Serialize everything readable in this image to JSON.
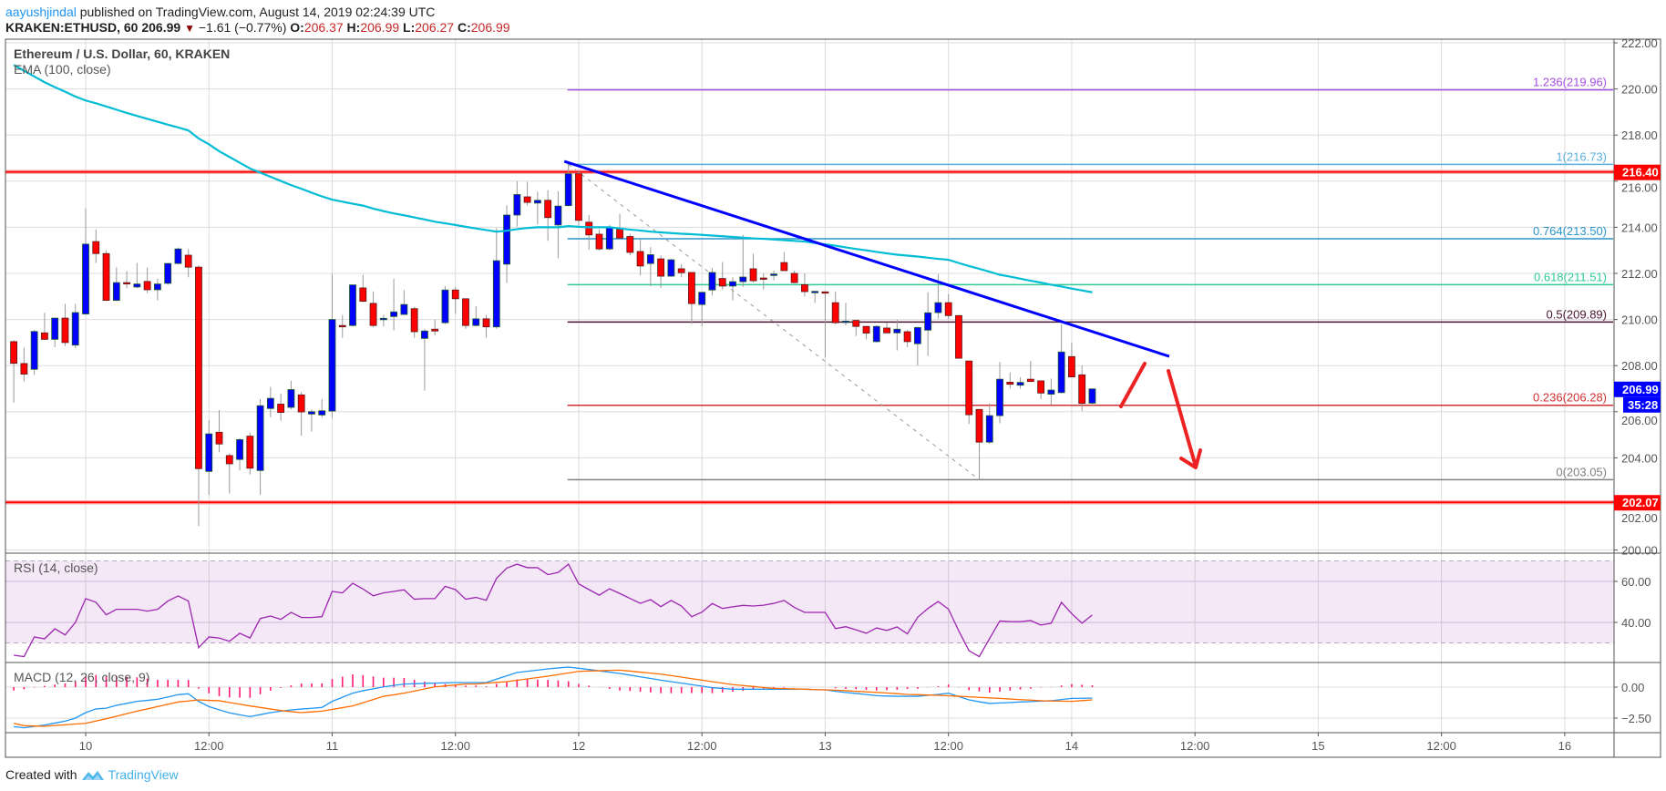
{
  "header": {
    "author": "aayushjindal",
    "published": "published on TradingView.com, August 14, 2019 02:24:39 UTC",
    "symbol": "KRAKEN:ETHUSD, 60",
    "last": "206.99",
    "change": "−1.61 (−0.77%)",
    "o_label": "O:",
    "o": "206.37",
    "h_label": "H:",
    "h": "206.99",
    "l_label": "L:",
    "l": "206.27",
    "c_label": "C:",
    "c": "206.99",
    "down_icon": "triangle-down-icon"
  },
  "footer": {
    "created": "Created with",
    "brand": "TradingView",
    "logo_icon": "tradingview-logo-icon"
  },
  "colors": {
    "up": "#0000ff",
    "down": "#ff0000",
    "ema": "#00bcd4",
    "rsi": "#9c27b0",
    "macd": "#2196f3",
    "signal": "#ff6d00",
    "hist": "#ff1a75",
    "trendline": "#0000ff",
    "level": "#ff0000",
    "last_price": "#0000ff"
  },
  "chart_data": {
    "type": "candlestick",
    "title": "Ethereum / U.S. Dollar, 60, KRAKEN",
    "indicator_label": "EMA (100, close)",
    "ylim": [
      200,
      222
    ],
    "y_ticks": [
      "222.00",
      "220.00",
      "218.00",
      "216.00",
      "214.00",
      "212.00",
      "210.00",
      "208.00",
      "206.00",
      "204.00",
      "202.00",
      "200.00"
    ],
    "x_tick_labels": [
      "10",
      "12:00",
      "11",
      "12:00",
      "12",
      "12:00",
      "13",
      "12:00",
      "14",
      "12:00",
      "15",
      "12:00",
      "16"
    ],
    "grid": true,
    "ohlc": [
      [
        209.04,
        209.1,
        206.4,
        208.1
      ],
      [
        208.09,
        208.78,
        207.31,
        207.63
      ],
      [
        207.84,
        209.55,
        207.6,
        209.48
      ],
      [
        209.42,
        210.29,
        209.1,
        209.14
      ],
      [
        209.14,
        210.06,
        208.8,
        210.06
      ],
      [
        210.06,
        210.68,
        208.85,
        209.0
      ],
      [
        208.89,
        210.68,
        208.75,
        210.3
      ],
      [
        210.24,
        214.82,
        210.2,
        213.27
      ],
      [
        213.38,
        213.91,
        212.45,
        212.86
      ],
      [
        212.86,
        213.0,
        210.8,
        210.83
      ],
      [
        210.83,
        212.26,
        210.8,
        211.6
      ],
      [
        211.6,
        212.1,
        211.35,
        211.55
      ],
      [
        211.41,
        212.45,
        211.35,
        211.54
      ],
      [
        211.65,
        212.26,
        211.15,
        211.29
      ],
      [
        211.29,
        211.77,
        210.83,
        211.54
      ],
      [
        211.57,
        212.45,
        211.5,
        212.43
      ],
      [
        212.43,
        213.12,
        212.4,
        213.06
      ],
      [
        212.79,
        213.05,
        211.83,
        212.27
      ],
      [
        212.27,
        212.35,
        201.04,
        203.53
      ],
      [
        203.41,
        205.64,
        202.4,
        205.04
      ],
      [
        205.11,
        206.07,
        204.24,
        204.6
      ],
      [
        204.1,
        204.2,
        202.45,
        203.74
      ],
      [
        203.93,
        204.85,
        203.45,
        204.79
      ],
      [
        204.94,
        205.1,
        203.28,
        203.55
      ],
      [
        203.45,
        206.55,
        202.4,
        206.26
      ],
      [
        206.14,
        207.08,
        205.76,
        206.58
      ],
      [
        206.33,
        206.79,
        205.61,
        205.97
      ],
      [
        206.19,
        207.34,
        206.1,
        206.96
      ],
      [
        206.73,
        206.86,
        204.96,
        205.99
      ],
      [
        205.9,
        206.1,
        205.14,
        206.0
      ],
      [
        205.86,
        206.55,
        205.75,
        206.04
      ],
      [
        206.03,
        211.97,
        205.73,
        210.0
      ],
      [
        209.74,
        210.2,
        209.2,
        209.72
      ],
      [
        209.74,
        211.5,
        209.7,
        211.5
      ],
      [
        211.37,
        211.94,
        210.75,
        210.79
      ],
      [
        210.7,
        211.22,
        209.67,
        209.74
      ],
      [
        210.03,
        210.2,
        209.7,
        210.05
      ],
      [
        210.13,
        211.77,
        209.53,
        210.33
      ],
      [
        210.22,
        211.27,
        210.2,
        210.65
      ],
      [
        210.47,
        210.55,
        209.21,
        209.47
      ],
      [
        209.18,
        209.6,
        206.91,
        209.5
      ],
      [
        209.58,
        210.0,
        209.3,
        209.5
      ],
      [
        209.86,
        211.44,
        209.8,
        211.28
      ],
      [
        211.28,
        211.4,
        210.24,
        210.9
      ],
      [
        210.9,
        210.9,
        209.6,
        209.74
      ],
      [
        209.74,
        210.58,
        209.7,
        210.03
      ],
      [
        210.03,
        210.2,
        209.21,
        209.68
      ],
      [
        209.68,
        213.96,
        209.6,
        212.55
      ],
      [
        212.4,
        214.96,
        211.58,
        214.53
      ],
      [
        214.53,
        216.0,
        214.03,
        215.42
      ],
      [
        215.32,
        215.97,
        214.94,
        215.08
      ],
      [
        215.05,
        215.54,
        214.13,
        215.17
      ],
      [
        215.17,
        215.61,
        213.41,
        214.42
      ],
      [
        214.1,
        215.57,
        212.66,
        214.92
      ],
      [
        214.94,
        216.73,
        214.9,
        216.32
      ],
      [
        216.32,
        216.47,
        213.96,
        214.3
      ],
      [
        214.22,
        214.53,
        213.02,
        213.67
      ],
      [
        213.7,
        213.9,
        213.0,
        213.06
      ],
      [
        213.06,
        214.1,
        213.0,
        213.99
      ],
      [
        213.91,
        214.58,
        213.5,
        213.53
      ],
      [
        213.6,
        213.72,
        212.78,
        212.91
      ],
      [
        212.95,
        213.5,
        211.91,
        212.32
      ],
      [
        212.43,
        213.14,
        211.44,
        212.81
      ],
      [
        212.63,
        212.78,
        211.37,
        211.88
      ],
      [
        211.88,
        212.63,
        211.85,
        212.59
      ],
      [
        212.2,
        212.4,
        211.83,
        212.03
      ],
      [
        212.04,
        212.04,
        209.81,
        210.69
      ],
      [
        210.65,
        211.2,
        209.71,
        211.18
      ],
      [
        211.28,
        212.23,
        211.04,
        212.04
      ],
      [
        211.78,
        212.49,
        211.3,
        211.45
      ],
      [
        211.45,
        211.83,
        210.83,
        211.64
      ],
      [
        211.64,
        213.67,
        211.41,
        211.84
      ],
      [
        212.2,
        212.85,
        211.6,
        211.68
      ],
      [
        211.8,
        212.0,
        211.3,
        211.77
      ],
      [
        211.95,
        212.12,
        211.7,
        211.97
      ],
      [
        212.47,
        212.92,
        212.1,
        212.12
      ],
      [
        212.0,
        212.12,
        211.58,
        211.6
      ],
      [
        211.51,
        212.0,
        211.0,
        211.21
      ],
      [
        211.2,
        211.25,
        210.72,
        211.22
      ],
      [
        211.2,
        211.2,
        208.35,
        211.17
      ],
      [
        210.73,
        211.22,
        209.8,
        209.86
      ],
      [
        209.9,
        210.72,
        209.74,
        209.93
      ],
      [
        209.96,
        209.98,
        209.28,
        209.7
      ],
      [
        209.7,
        209.72,
        209.14,
        209.41
      ],
      [
        209.04,
        209.75,
        209.0,
        209.7
      ],
      [
        209.63,
        209.86,
        209.4,
        209.42
      ],
      [
        209.42,
        210.0,
        208.66,
        209.58
      ],
      [
        209.47,
        209.54,
        208.8,
        209.04
      ],
      [
        208.95,
        209.7,
        208.01,
        209.65
      ],
      [
        209.54,
        211.18,
        208.42,
        210.29
      ],
      [
        210.3,
        211.97,
        210.04,
        210.73
      ],
      [
        210.73,
        211.1,
        210.03,
        210.17
      ],
      [
        210.17,
        210.2,
        208.3,
        208.32
      ],
      [
        208.2,
        208.2,
        205.47,
        205.87
      ],
      [
        206.1,
        206.1,
        203.05,
        204.68
      ],
      [
        204.68,
        206.36,
        204.6,
        205.83
      ],
      [
        205.83,
        208.16,
        205.5,
        207.41
      ],
      [
        207.28,
        207.7,
        207.0,
        207.19
      ],
      [
        207.15,
        207.5,
        207.0,
        207.27
      ],
      [
        207.41,
        208.2,
        207.3,
        207.31
      ],
      [
        207.34,
        207.35,
        206.55,
        206.81
      ],
      [
        206.76,
        207.44,
        206.3,
        206.94
      ],
      [
        206.83,
        209.78,
        206.8,
        208.59
      ],
      [
        208.39,
        209.0,
        207.5,
        207.51
      ],
      [
        207.6,
        208.01,
        206.04,
        206.36
      ],
      [
        206.37,
        206.99,
        206.27,
        206.99
      ]
    ],
    "ema100": [
      221.04,
      220.79,
      220.54,
      220.29,
      220.08,
      219.88,
      219.67,
      219.5,
      219.38,
      219.24,
      219.1,
      218.96,
      218.83,
      218.7,
      218.58,
      218.45,
      218.33,
      218.2,
      217.85,
      217.6,
      217.3,
      217.05,
      216.8,
      216.55,
      216.37,
      216.19,
      216.01,
      215.83,
      215.67,
      215.5,
      215.34,
      215.2,
      215.11,
      215.02,
      214.94,
      214.81,
      214.7,
      214.6,
      214.52,
      214.43,
      214.34,
      214.24,
      214.17,
      214.1,
      214.02,
      213.95,
      213.88,
      213.81,
      213.85,
      213.92,
      213.97,
      214.0,
      214.0,
      214.0,
      214.05,
      214.02,
      214.0,
      214.0,
      214.0,
      213.95,
      213.9,
      213.86,
      213.81,
      213.78,
      213.75,
      213.72,
      213.7,
      213.67,
      213.64,
      213.61,
      213.58,
      213.55,
      213.52,
      213.5,
      213.47,
      213.44,
      213.41,
      213.38,
      213.32,
      213.26,
      213.2,
      213.13,
      213.06,
      213.0,
      212.93,
      212.87,
      212.81,
      212.77,
      212.73,
      212.68,
      212.63,
      212.59,
      212.45,
      212.32,
      212.2,
      212.07,
      211.94,
      211.86,
      211.77,
      211.68,
      211.6,
      211.51,
      211.43,
      211.34,
      211.26,
      211.18
    ],
    "horizontal_levels": [
      {
        "price": 216.4,
        "label": "216.40"
      },
      {
        "price": 202.07,
        "label": "202.07"
      }
    ],
    "fibonacci": {
      "from_index": 54,
      "to_index": 94,
      "levels": [
        {
          "ratio": "1.236",
          "price": 219.96,
          "label": "1.236(219.96)",
          "color": "#a64ee0"
        },
        {
          "ratio": "1",
          "price": 216.73,
          "label": "1(216.73)",
          "color": "#5aaedc"
        },
        {
          "ratio": "0.764",
          "price": 213.5,
          "label": "0.764(213.50)",
          "color": "#2a96cc"
        },
        {
          "ratio": "0.618",
          "price": 211.51,
          "label": "0.618(211.51)",
          "color": "#2ecc94"
        },
        {
          "ratio": "0.5",
          "price": 209.89,
          "label": "0.5(209.89)",
          "color": "#4a1430"
        },
        {
          "ratio": "0.236",
          "price": 206.28,
          "label": "0.236(206.28)",
          "color": "#d03030"
        },
        {
          "ratio": "0",
          "price": 203.05,
          "label": "0(203.05)",
          "color": "#808080"
        }
      ]
    },
    "trendline": {
      "start": [
        53.6,
        216.86
      ],
      "end": [
        112.5,
        208.4
      ]
    },
    "last_price_label": "206.99",
    "countdown_label": "35:28",
    "rsi": {
      "label": "RSI (14, close)",
      "ticks": [
        "60.00",
        "40.00"
      ],
      "band": [
        30,
        70
      ],
      "values": [
        24.0,
        23.3,
        32.9,
        32.0,
        36.9,
        33.9,
        40.0,
        51.6,
        49.8,
        43.7,
        46.4,
        46.4,
        46.4,
        45.5,
        46.4,
        50.4,
        52.9,
        50.4,
        27.7,
        32.9,
        32.4,
        30.8,
        34.7,
        32.4,
        41.9,
        43.1,
        41.5,
        44.9,
        42.4,
        42.4,
        42.8,
        55.1,
        54.4,
        59.1,
        56.3,
        53.0,
        54.4,
        55.1,
        55.9,
        51.3,
        51.6,
        51.6,
        57.6,
        56.0,
        51.3,
        52.2,
        50.8,
        61.5,
        66.5,
        68.4,
        66.7,
        66.7,
        63.3,
        64.4,
        68.4,
        58.8,
        56.0,
        53.3,
        56.4,
        54.1,
        51.7,
        49.3,
        51.1,
        47.7,
        50.7,
        48.0,
        42.8,
        45.0,
        49.2,
        46.8,
        47.6,
        48.3,
        48.0,
        48.4,
        49.3,
        50.7,
        47.3,
        44.9,
        44.9,
        44.9,
        37.0,
        37.9,
        36.4,
        34.7,
        37.3,
        36.1,
        37.8,
        34.4,
        42.5,
        46.8,
        50.2,
        46.5,
        35.9,
        26.2,
        23.3,
        32.1,
        40.7,
        40.4,
        40.4,
        40.9,
        38.7,
        39.6,
        49.8,
        44.3,
        39.6,
        43.6
      ]
    },
    "macd": {
      "label": "MACD (12, 26, close, 9)",
      "ticks": [
        "0.00",
        "−2.50"
      ],
      "macd": [
        -3.19,
        -3.28,
        -3.17,
        -3.06,
        -2.9,
        -2.75,
        -2.5,
        -2.06,
        -1.76,
        -1.7,
        -1.47,
        -1.31,
        -1.15,
        -1.07,
        -0.98,
        -0.8,
        -0.61,
        -0.54,
        -1.15,
        -1.57,
        -1.83,
        -2.08,
        -2.23,
        -2.38,
        -2.22,
        -2.06,
        -1.95,
        -1.84,
        -1.77,
        -1.71,
        -1.64,
        -1.15,
        -0.82,
        -0.49,
        -0.29,
        -0.14,
        0.02,
        0.14,
        0.25,
        0.27,
        0.3,
        0.32,
        0.35,
        0.37,
        0.37,
        0.37,
        0.37,
        0.64,
        0.91,
        1.18,
        1.28,
        1.37,
        1.47,
        1.55,
        1.62,
        1.52,
        1.42,
        1.31,
        1.21,
        1.1,
        0.97,
        0.83,
        0.7,
        0.56,
        0.44,
        0.32,
        0.2,
        0.08,
        -0.05,
        -0.11,
        -0.17,
        -0.17,
        -0.17,
        -0.17,
        -0.17,
        -0.17,
        -0.17,
        -0.17,
        -0.2,
        -0.22,
        -0.34,
        -0.43,
        -0.51,
        -0.6,
        -0.69,
        -0.72,
        -0.74,
        -0.74,
        -0.74,
        -0.66,
        -0.59,
        -0.49,
        -0.76,
        -1.03,
        -1.18,
        -1.32,
        -1.28,
        -1.24,
        -1.2,
        -1.17,
        -1.13,
        -1.1,
        -1.0,
        -0.91,
        -0.9,
        -0.88
      ],
      "signal": [
        -2.92,
        -3.11,
        -3.14,
        -3.16,
        -3.1,
        -3.04,
        -2.98,
        -2.92,
        -2.74,
        -2.55,
        -2.35,
        -2.14,
        -1.94,
        -1.76,
        -1.57,
        -1.39,
        -1.2,
        -1.12,
        -1.03,
        -1.07,
        -1.1,
        -1.24,
        -1.38,
        -1.52,
        -1.64,
        -1.77,
        -1.89,
        -1.98,
        -2.06,
        -2.0,
        -1.94,
        -1.8,
        -1.66,
        -1.52,
        -1.26,
        -1.0,
        -0.74,
        -0.62,
        -0.49,
        -0.32,
        -0.15,
        0.02,
        0.1,
        0.17,
        0.25,
        0.25,
        0.31,
        0.38,
        0.44,
        0.55,
        0.66,
        0.77,
        0.88,
        1.01,
        1.14,
        1.27,
        1.3,
        1.32,
        1.35,
        1.37,
        1.29,
        1.21,
        1.13,
        1.05,
        0.93,
        0.81,
        0.68,
        0.56,
        0.44,
        0.32,
        0.2,
        0.13,
        0.05,
        -0.03,
        -0.1,
        -0.12,
        -0.15,
        -0.17,
        -0.2,
        -0.22,
        -0.25,
        -0.29,
        -0.34,
        -0.38,
        -0.42,
        -0.48,
        -0.53,
        -0.59,
        -0.61,
        -0.64,
        -0.66,
        -0.7,
        -0.74,
        -0.78,
        -0.83,
        -0.87,
        -0.91,
        -0.96,
        -1.01,
        -1.05,
        -1.1,
        -1.12,
        -1.13,
        -1.15,
        -1.09,
        -1.03
      ]
    }
  }
}
